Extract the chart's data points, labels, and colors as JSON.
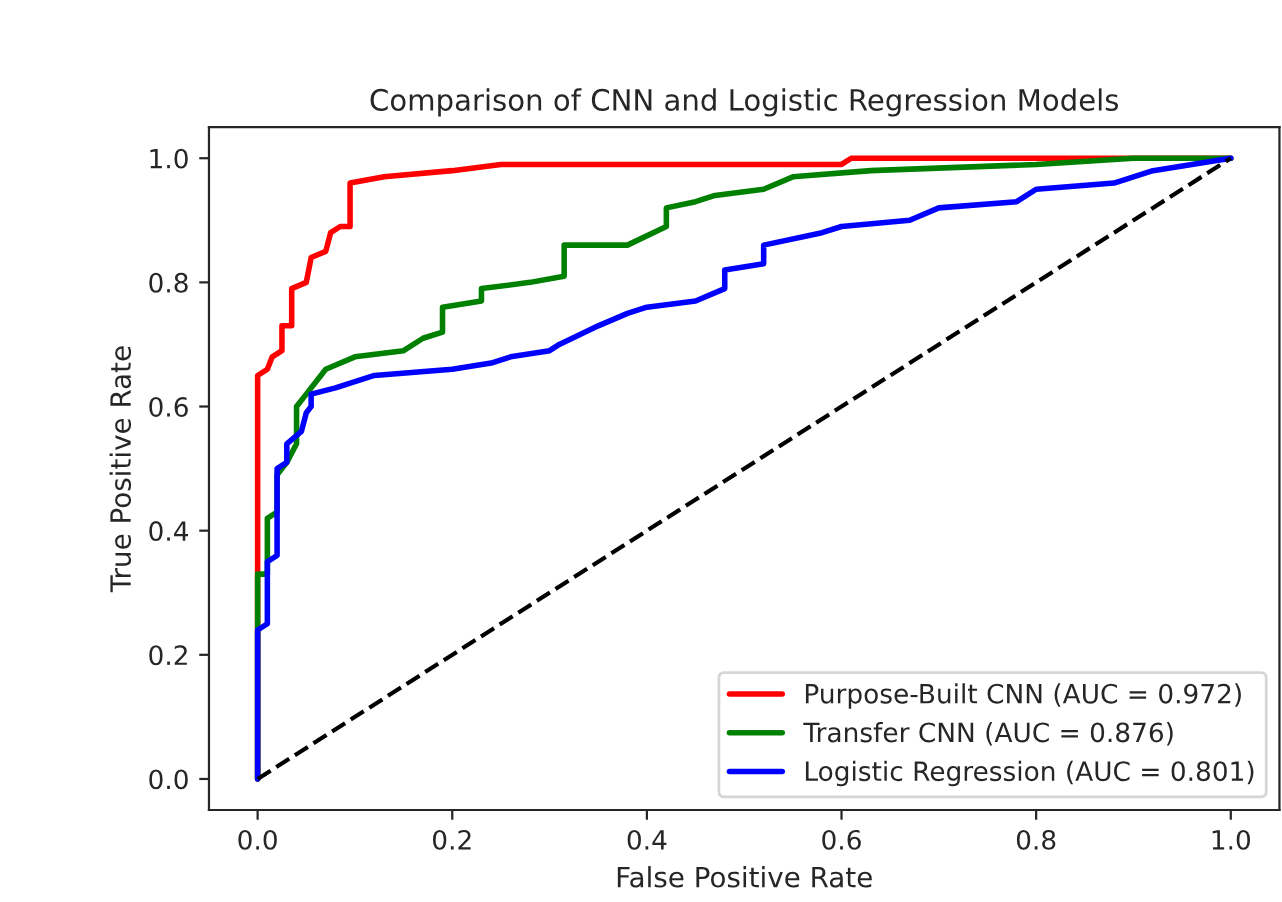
{
  "chart_data": {
    "type": "line",
    "title": "Comparison of CNN and Logistic Regression Models",
    "xlabel": "False Positive Rate",
    "ylabel": "True Positive Rate",
    "xlim": [
      -0.05,
      1.05
    ],
    "ylim": [
      -0.05,
      1.05
    ],
    "xticks": [
      {
        "value": 0,
        "label": "0.0"
      },
      0.2,
      0.4,
      0.6,
      0.8,
      {
        "value": 1,
        "label": "1.0"
      }
    ],
    "yticks": [
      {
        "value": 0,
        "label": "0.0"
      },
      0.2,
      0.4,
      0.6,
      0.8,
      {
        "value": 1,
        "label": "1.0"
      }
    ],
    "grid": false,
    "legend": "bottom right",
    "marker": "none",
    "series": [
      {
        "name": "Purpose-Built CNN (AUC = 0.972)",
        "color": "#ff0000",
        "line_style": "solid",
        "x": [
          0,
          0,
          0.01,
          0.015,
          0.025,
          0.025,
          0.035,
          0.035,
          0.05,
          0.055,
          0.07,
          0.075,
          0.085,
          0.095,
          0.095,
          0.13,
          0.2,
          0.25,
          0.6,
          0.61,
          1
        ],
        "values": [
          0,
          0.65,
          0.66,
          0.68,
          0.69,
          0.73,
          0.73,
          0.79,
          0.8,
          0.84,
          0.85,
          0.88,
          0.89,
          0.89,
          0.96,
          0.97,
          0.98,
          0.99,
          0.99,
          1.0,
          1.0
        ]
      },
      {
        "name": "Transfer CNN (AUC = 0.876)",
        "color": "#008000",
        "line_style": "solid",
        "x": [
          0,
          0,
          0.01,
          0.01,
          0.02,
          0.02,
          0.03,
          0.04,
          0.04,
          0.05,
          0.065,
          0.07,
          0.1,
          0.15,
          0.17,
          0.19,
          0.19,
          0.23,
          0.23,
          0.28,
          0.315,
          0.315,
          0.38,
          0.42,
          0.42,
          0.45,
          0.47,
          0.52,
          0.55,
          0.63,
          0.8,
          0.9,
          1
        ],
        "values": [
          0,
          0.33,
          0.33,
          0.42,
          0.43,
          0.49,
          0.51,
          0.54,
          0.6,
          0.62,
          0.65,
          0.66,
          0.68,
          0.69,
          0.71,
          0.72,
          0.76,
          0.77,
          0.79,
          0.8,
          0.81,
          0.86,
          0.86,
          0.89,
          0.92,
          0.93,
          0.94,
          0.95,
          0.97,
          0.98,
          0.99,
          1.0,
          1.0
        ]
      },
      {
        "name": "Logistic Regression (AUC = 0.801)",
        "color": "#0000ff",
        "line_style": "solid",
        "x": [
          0,
          0,
          0.01,
          0.01,
          0.02,
          0.02,
          0.03,
          0.03,
          0.045,
          0.05,
          0.055,
          0.055,
          0.08,
          0.12,
          0.2,
          0.24,
          0.26,
          0.3,
          0.31,
          0.35,
          0.38,
          0.4,
          0.45,
          0.48,
          0.48,
          0.52,
          0.52,
          0.58,
          0.6,
          0.67,
          0.7,
          0.78,
          0.8,
          0.88,
          0.92,
          0.96,
          1
        ],
        "values": [
          0,
          0.24,
          0.25,
          0.35,
          0.36,
          0.5,
          0.51,
          0.54,
          0.56,
          0.59,
          0.6,
          0.62,
          0.63,
          0.65,
          0.66,
          0.67,
          0.68,
          0.69,
          0.7,
          0.73,
          0.75,
          0.76,
          0.77,
          0.79,
          0.82,
          0.83,
          0.86,
          0.88,
          0.89,
          0.9,
          0.92,
          0.93,
          0.95,
          0.96,
          0.98,
          0.99,
          1.0
        ]
      },
      {
        "color": "#000000",
        "line_style": "dashed",
        "x": [
          0,
          1
        ],
        "values": [
          0,
          1
        ]
      }
    ]
  }
}
